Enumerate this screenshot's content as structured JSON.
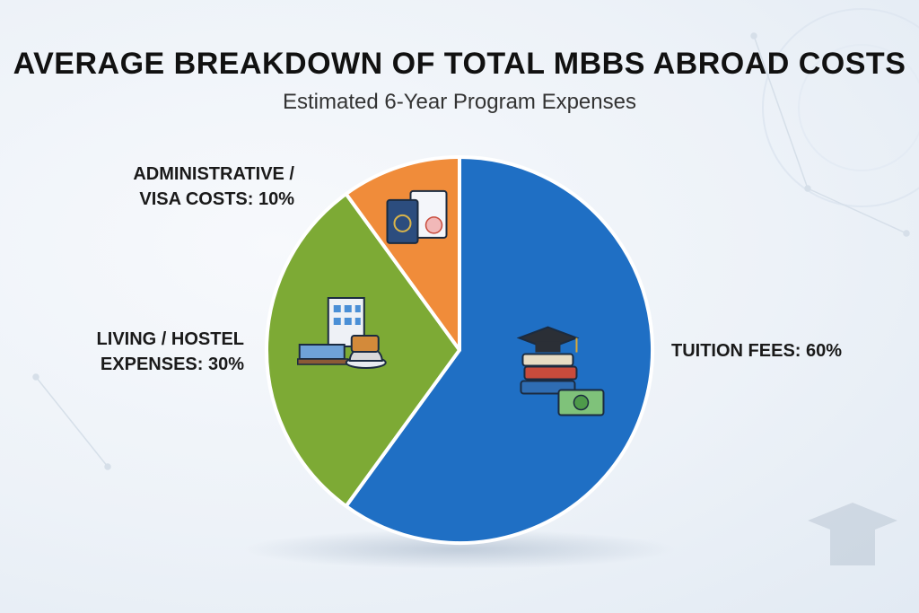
{
  "chart_data": {
    "type": "pie",
    "title": "AVERAGE BREAKDOWN OF TOTAL MBBS ABROAD COSTS",
    "subtitle": "Estimated 6-Year Program Expenses",
    "slices": [
      {
        "label_lines": [
          "TUITION FEES: 60%"
        ],
        "value": 60,
        "color": "#1f6fc4",
        "icon": "graduation-books-money-icon"
      },
      {
        "label_lines": [
          "LIVING / HOSTEL",
          "EXPENSES: 30%"
        ],
        "value": 30,
        "color": "#7daa35",
        "icon": "hostel-bed-food-icon"
      },
      {
        "label_lines": [
          "ADMINISTRATIVE /",
          "VISA COSTS: 10%"
        ],
        "value": 10,
        "color": "#f08c3a",
        "icon": "passport-document-icon"
      }
    ]
  }
}
